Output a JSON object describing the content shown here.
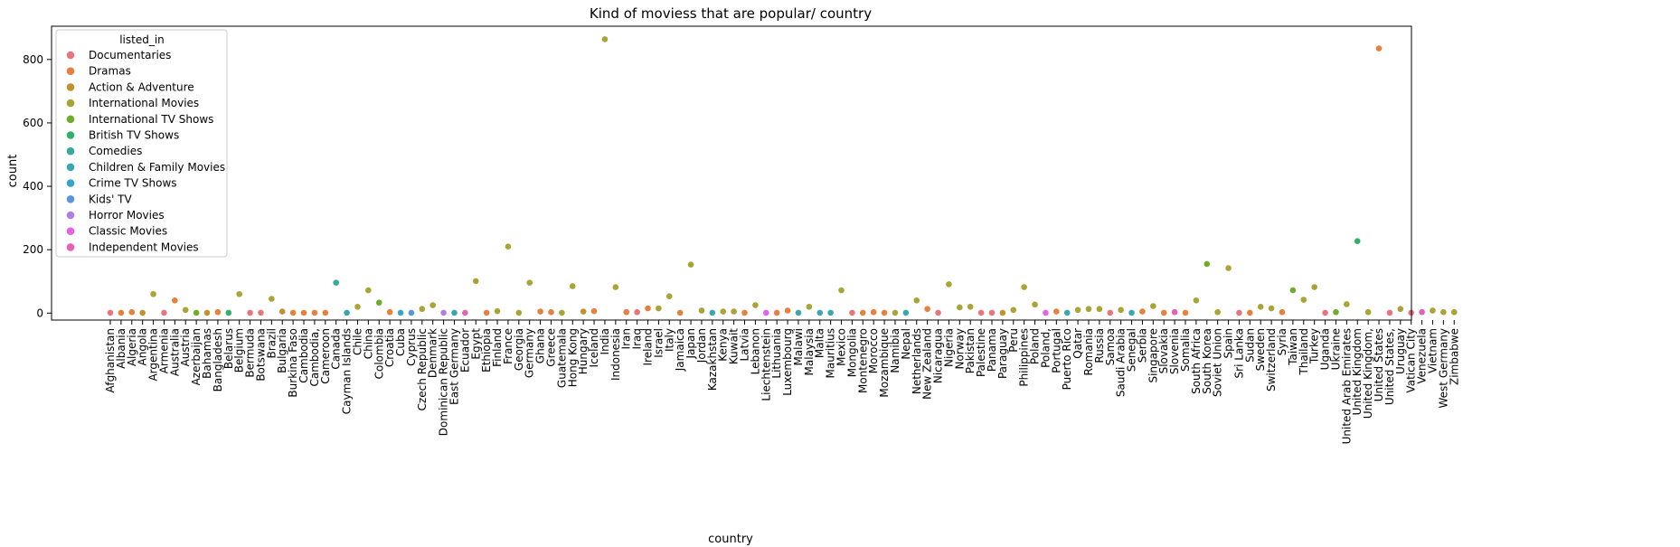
{
  "chart_data": {
    "type": "scatter",
    "title": "Kind of moviess that are popular/ country",
    "xlabel": "country",
    "ylabel": "count",
    "ylim": [
      -22,
      905
    ],
    "yticks": [
      0,
      200,
      400,
      600,
      800
    ],
    "grid": false,
    "legend": {
      "title": "listed_in",
      "placement": "upper-left",
      "entries": [
        {
          "name": "Documentaries",
          "color": "#e8747c"
        },
        {
          "name": "Dramas",
          "color": "#e6803d"
        },
        {
          "name": "Action & Adventure",
          "color": "#c1922f"
        },
        {
          "name": "International Movies",
          "color": "#a8a436"
        },
        {
          "name": "International TV Shows",
          "color": "#6ead2c"
        },
        {
          "name": "British TV Shows",
          "color": "#33ae6c"
        },
        {
          "name": "Comedies",
          "color": "#38aa99"
        },
        {
          "name": "Children & Family Movies",
          "color": "#39a6b0"
        },
        {
          "name": "Crime TV Shows",
          "color": "#3aa3c8"
        },
        {
          "name": "Kids' TV",
          "color": "#5a96e0"
        },
        {
          "name": "Horror Movies",
          "color": "#af80e3"
        },
        {
          "name": "Classic Movies",
          "color": "#e064e4"
        },
        {
          "name": "Independent Movies",
          "color": "#e562b3"
        }
      ]
    },
    "categories": [
      "Afghanistan",
      "Albania",
      "Algeria",
      "Angola",
      "Argentina",
      "Armenia",
      "Australia",
      "Austria",
      "Azerbaijan",
      "Bahamas",
      "Bangladesh",
      "Belarus",
      "Belgium",
      "Bermuda",
      "Botswana",
      "Brazil",
      "Bulgaria",
      "Burkina Faso",
      "Cambodia",
      "Cambodia,",
      "Cameroon",
      "Canada",
      "Cayman Islands",
      "Chile",
      "China",
      "Colombia",
      "Croatia",
      "Cuba",
      "Cyprus",
      "Czech Republic",
      "Denmark",
      "Dominican Republic",
      "East Germany",
      "Ecuador",
      "Egypt",
      "Ethiopia",
      "Finland",
      "France",
      "Georgia",
      "Germany",
      "Ghana",
      "Greece",
      "Guatemala",
      "Hong Kong",
      "Hungary",
      "Iceland",
      "India",
      "Indonesia",
      "Iran",
      "Iraq",
      "Ireland",
      "Israel",
      "Italy",
      "Jamaica",
      "Japan",
      "Jordan",
      "Kazakhstan",
      "Kenya",
      "Kuwait",
      "Latvia",
      "Lebanon",
      "Liechtenstein",
      "Lithuania",
      "Luxembourg",
      "Malawi",
      "Malaysia",
      "Malta",
      "Mauritius",
      "Mexico",
      "Mongolia",
      "Montenegro",
      "Morocco",
      "Mozambique",
      "Namibia",
      "Nepal",
      "Netherlands",
      "New Zealand",
      "Nicaragua",
      "Nigeria",
      "Norway",
      "Pakistan",
      "Palestine",
      "Panama",
      "Paraguay",
      "Peru",
      "Philippines",
      "Poland",
      "Poland,",
      "Portugal",
      "Puerto Rico",
      "Qatar",
      "Romania",
      "Russia",
      "Samoa",
      "Saudi Arabia",
      "Senegal",
      "Serbia",
      "Singapore",
      "Slovakia",
      "Slovenia",
      "Somalia",
      "South Africa",
      "South Korea",
      "Soviet Union",
      "Spain",
      "Sri Lanka",
      "Sudan",
      "Sweden",
      "Switzerland",
      "Syria",
      "Taiwan",
      "Thailand",
      "Turkey",
      "Uganda",
      "Ukraine",
      "United Arab Emirates",
      "United Kingdom",
      "United Kingdom,",
      "United States",
      "United States,",
      "Uruguay",
      "Vatican City",
      "Venezuela",
      "Vietnam",
      "West Germany",
      "Zimbabwe"
    ],
    "points": [
      {
        "country": "Afghanistan",
        "listed_in": "Documentaries",
        "count": 1
      },
      {
        "country": "Albania",
        "listed_in": "Dramas",
        "count": 1
      },
      {
        "country": "Algeria",
        "listed_in": "Dramas",
        "count": 3
      },
      {
        "country": "Angola",
        "listed_in": "Action & Adventure",
        "count": 1
      },
      {
        "country": "Argentina",
        "listed_in": "International Movies",
        "count": 60
      },
      {
        "country": "Armenia",
        "listed_in": "Documentaries",
        "count": 1
      },
      {
        "country": "Australia",
        "listed_in": "Dramas",
        "count": 40
      },
      {
        "country": "Austria",
        "listed_in": "International Movies",
        "count": 10
      },
      {
        "country": "Azerbaijan",
        "listed_in": "International TV Shows",
        "count": 1
      },
      {
        "country": "Bahamas",
        "listed_in": "Action & Adventure",
        "count": 1
      },
      {
        "country": "Bangladesh",
        "listed_in": "Dramas",
        "count": 3
      },
      {
        "country": "Belarus",
        "listed_in": "British TV Shows",
        "count": 1
      },
      {
        "country": "Belgium",
        "listed_in": "International Movies",
        "count": 60
      },
      {
        "country": "Bermuda",
        "listed_in": "Documentaries",
        "count": 1
      },
      {
        "country": "Botswana",
        "listed_in": "Documentaries",
        "count": 1
      },
      {
        "country": "Brazil",
        "listed_in": "International Movies",
        "count": 45
      },
      {
        "country": "Bulgaria",
        "listed_in": "Action & Adventure",
        "count": 5
      },
      {
        "country": "Burkina Faso",
        "listed_in": "Dramas",
        "count": 1
      },
      {
        "country": "Cambodia",
        "listed_in": "Dramas",
        "count": 1
      },
      {
        "country": "Cambodia,",
        "listed_in": "Dramas",
        "count": 1
      },
      {
        "country": "Cameroon",
        "listed_in": "Dramas",
        "count": 1
      },
      {
        "country": "Canada",
        "listed_in": "Comedies",
        "count": 96
      },
      {
        "country": "Cayman Islands",
        "listed_in": "Children & Family Movies",
        "count": 1
      },
      {
        "country": "Chile",
        "listed_in": "International Movies",
        "count": 20
      },
      {
        "country": "China",
        "listed_in": "International Movies",
        "count": 72
      },
      {
        "country": "Colombia",
        "listed_in": "International TV Shows",
        "count": 33
      },
      {
        "country": "Croatia",
        "listed_in": "Dramas",
        "count": 3
      },
      {
        "country": "Cuba",
        "listed_in": "Crime TV Shows",
        "count": 1
      },
      {
        "country": "Cyprus",
        "listed_in": "Kids' TV",
        "count": 1
      },
      {
        "country": "Czech Republic",
        "listed_in": "International Movies",
        "count": 13
      },
      {
        "country": "Denmark",
        "listed_in": "International Movies",
        "count": 25
      },
      {
        "country": "Dominican Republic",
        "listed_in": "Horror Movies",
        "count": 1
      },
      {
        "country": "East Germany",
        "listed_in": "Children & Family Movies",
        "count": 1
      },
      {
        "country": "Ecuador",
        "listed_in": "Independent Movies",
        "count": 1
      },
      {
        "country": "Egypt",
        "listed_in": "International Movies",
        "count": 101
      },
      {
        "country": "Ethiopia",
        "listed_in": "Dramas",
        "count": 1
      },
      {
        "country": "Finland",
        "listed_in": "International Movies",
        "count": 6
      },
      {
        "country": "France",
        "listed_in": "International Movies",
        "count": 210
      },
      {
        "country": "Georgia",
        "listed_in": "International Movies",
        "count": 1
      },
      {
        "country": "Germany",
        "listed_in": "International Movies",
        "count": 96
      },
      {
        "country": "Ghana",
        "listed_in": "Dramas",
        "count": 5
      },
      {
        "country": "Greece",
        "listed_in": "Dramas",
        "count": 3
      },
      {
        "country": "Guatemala",
        "listed_in": "International Movies",
        "count": 1
      },
      {
        "country": "Hong Kong",
        "listed_in": "International Movies",
        "count": 85
      },
      {
        "country": "Hungary",
        "listed_in": "Action & Adventure",
        "count": 5
      },
      {
        "country": "Iceland",
        "listed_in": "Dramas",
        "count": 6
      },
      {
        "country": "India",
        "listed_in": "International Movies",
        "count": 864
      },
      {
        "country": "Indonesia",
        "listed_in": "International Movies",
        "count": 82
      },
      {
        "country": "Iran",
        "listed_in": "Dramas",
        "count": 3
      },
      {
        "country": "Iraq",
        "listed_in": "Documentaries",
        "count": 3
      },
      {
        "country": "Ireland",
        "listed_in": "Dramas",
        "count": 15
      },
      {
        "country": "Israel",
        "listed_in": "International Movies",
        "count": 15
      },
      {
        "country": "Italy",
        "listed_in": "International Movies",
        "count": 53
      },
      {
        "country": "Jamaica",
        "listed_in": "Dramas",
        "count": 1
      },
      {
        "country": "Japan",
        "listed_in": "International Movies",
        "count": 153
      },
      {
        "country": "Jordan",
        "listed_in": "International Movies",
        "count": 8
      },
      {
        "country": "Kazakhstan",
        "listed_in": "Children & Family Movies",
        "count": 1
      },
      {
        "country": "Kenya",
        "listed_in": "International Movies",
        "count": 5
      },
      {
        "country": "Kuwait",
        "listed_in": "International Movies",
        "count": 5
      },
      {
        "country": "Latvia",
        "listed_in": "Dramas",
        "count": 1
      },
      {
        "country": "Lebanon",
        "listed_in": "International Movies",
        "count": 25
      },
      {
        "country": "Liechtenstein",
        "listed_in": "Classic Movies",
        "count": 1
      },
      {
        "country": "Lithuania",
        "listed_in": "Dramas",
        "count": 1
      },
      {
        "country": "Luxembourg",
        "listed_in": "Dramas",
        "count": 8
      },
      {
        "country": "Malawi",
        "listed_in": "Children & Family Movies",
        "count": 1
      },
      {
        "country": "Malaysia",
        "listed_in": "International Movies",
        "count": 20
      },
      {
        "country": "Malta",
        "listed_in": "Children & Family Movies",
        "count": 1
      },
      {
        "country": "Mauritius",
        "listed_in": "Children & Family Movies",
        "count": 1
      },
      {
        "country": "Mexico",
        "listed_in": "International Movies",
        "count": 72
      },
      {
        "country": "Mongolia",
        "listed_in": "Documentaries",
        "count": 1
      },
      {
        "country": "Montenegro",
        "listed_in": "Dramas",
        "count": 1
      },
      {
        "country": "Morocco",
        "listed_in": "Dramas",
        "count": 3
      },
      {
        "country": "Mozambique",
        "listed_in": "Dramas",
        "count": 1
      },
      {
        "country": "Namibia",
        "listed_in": "International Movies",
        "count": 1
      },
      {
        "country": "Nepal",
        "listed_in": "Children & Family Movies",
        "count": 1
      },
      {
        "country": "Netherlands",
        "listed_in": "International Movies",
        "count": 40
      },
      {
        "country": "New Zealand",
        "listed_in": "Dramas",
        "count": 13
      },
      {
        "country": "Nicaragua",
        "listed_in": "Documentaries",
        "count": 1
      },
      {
        "country": "Nigeria",
        "listed_in": "International Movies",
        "count": 91
      },
      {
        "country": "Norway",
        "listed_in": "International Movies",
        "count": 18
      },
      {
        "country": "Pakistan",
        "listed_in": "International Movies",
        "count": 20
      },
      {
        "country": "Palestine",
        "listed_in": "Documentaries",
        "count": 1
      },
      {
        "country": "Panama",
        "listed_in": "Documentaries",
        "count": 1
      },
      {
        "country": "Paraguay",
        "listed_in": "Action & Adventure",
        "count": 1
      },
      {
        "country": "Peru",
        "listed_in": "International Movies",
        "count": 10
      },
      {
        "country": "Philippines",
        "listed_in": "International Movies",
        "count": 82
      },
      {
        "country": "Poland",
        "listed_in": "International Movies",
        "count": 27
      },
      {
        "country": "Poland,",
        "listed_in": "Classic Movies",
        "count": 1
      },
      {
        "country": "Portugal",
        "listed_in": "Dramas",
        "count": 5
      },
      {
        "country": "Puerto Rico",
        "listed_in": "Children & Family Movies",
        "count": 1
      },
      {
        "country": "Qatar",
        "listed_in": "International Movies",
        "count": 10
      },
      {
        "country": "Romania",
        "listed_in": "International Movies",
        "count": 13
      },
      {
        "country": "Russia",
        "listed_in": "International Movies",
        "count": 13
      },
      {
        "country": "Samoa",
        "listed_in": "Documentaries",
        "count": 1
      },
      {
        "country": "Saudi Arabia",
        "listed_in": "International Movies",
        "count": 10
      },
      {
        "country": "Senegal",
        "listed_in": "Children & Family Movies",
        "count": 1
      },
      {
        "country": "Serbia",
        "listed_in": "Dramas",
        "count": 5
      },
      {
        "country": "Singapore",
        "listed_in": "International Movies",
        "count": 22
      },
      {
        "country": "Slovakia",
        "listed_in": "Dramas",
        "count": 1
      },
      {
        "country": "Slovenia",
        "listed_in": "Independent Movies",
        "count": 3
      },
      {
        "country": "Somalia",
        "listed_in": "Dramas",
        "count": 1
      },
      {
        "country": "South Africa",
        "listed_in": "International Movies",
        "count": 40
      },
      {
        "country": "South Korea",
        "listed_in": "International TV Shows",
        "count": 155
      },
      {
        "country": "Soviet Union",
        "listed_in": "International Movies",
        "count": 3
      },
      {
        "country": "Spain",
        "listed_in": "International Movies",
        "count": 142
      },
      {
        "country": "Sri Lanka",
        "listed_in": "Documentaries",
        "count": 1
      },
      {
        "country": "Sudan",
        "listed_in": "Dramas",
        "count": 1
      },
      {
        "country": "Sweden",
        "listed_in": "International Movies",
        "count": 20
      },
      {
        "country": "Switzerland",
        "listed_in": "International Movies",
        "count": 15
      },
      {
        "country": "Syria",
        "listed_in": "Dramas",
        "count": 3
      },
      {
        "country": "Taiwan",
        "listed_in": "International TV Shows",
        "count": 72
      },
      {
        "country": "Thailand",
        "listed_in": "International Movies",
        "count": 42
      },
      {
        "country": "Turkey",
        "listed_in": "International Movies",
        "count": 82
      },
      {
        "country": "Uganda",
        "listed_in": "Documentaries",
        "count": 1
      },
      {
        "country": "Ukraine",
        "listed_in": "International TV Shows",
        "count": 3
      },
      {
        "country": "United Arab Emirates",
        "listed_in": "International Movies",
        "count": 28
      },
      {
        "country": "United Kingdom",
        "listed_in": "British TV Shows",
        "count": 227
      },
      {
        "country": "United Kingdom,",
        "listed_in": "International Movies",
        "count": 3
      },
      {
        "country": "United States",
        "listed_in": "Dramas",
        "count": 835
      },
      {
        "country": "United States,",
        "listed_in": "Documentaries",
        "count": 1
      },
      {
        "country": "Uruguay",
        "listed_in": "International Movies",
        "count": 13
      },
      {
        "country": "Vatican City",
        "listed_in": "Documentaries",
        "count": 1
      },
      {
        "country": "Venezuela",
        "listed_in": "Independent Movies",
        "count": 3
      },
      {
        "country": "Vietnam",
        "listed_in": "International Movies",
        "count": 8
      },
      {
        "country": "West Germany",
        "listed_in": "International Movies",
        "count": 3
      },
      {
        "country": "Zimbabwe",
        "listed_in": "International Movies",
        "count": 3
      }
    ]
  }
}
